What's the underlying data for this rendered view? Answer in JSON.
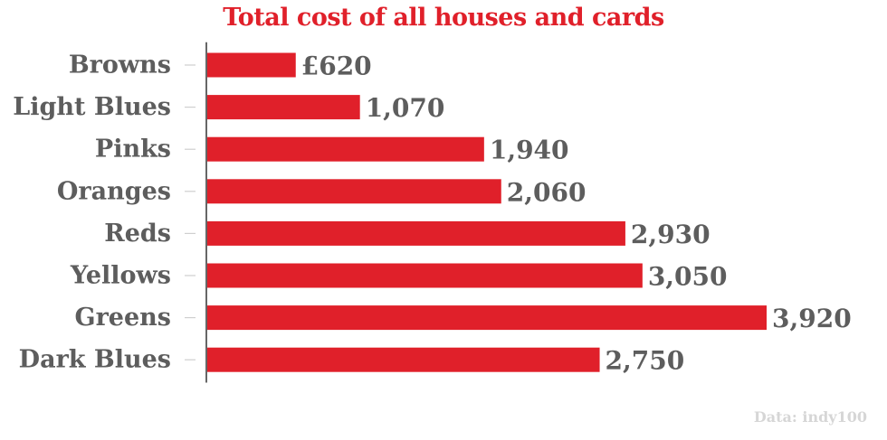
{
  "chart_data": {
    "type": "bar",
    "orientation": "horizontal",
    "title": "Total cost of all houses and cards",
    "categories": [
      "Browns",
      "Light Blues",
      "Pinks",
      "Oranges",
      "Reds",
      "Yellows",
      "Greens",
      "Dark Blues"
    ],
    "values": [
      620,
      1070,
      1940,
      2060,
      2930,
      3050,
      3920,
      2750
    ],
    "value_labels": [
      "£620",
      "1,070",
      "1,940",
      "2,060",
      "2,930",
      "3,050",
      "3,920",
      "2,750"
    ],
    "xlim": [
      0,
      3920
    ],
    "grid": false,
    "legend": "none",
    "bar_color": "#e0202a",
    "title_color": "#e0202a",
    "label_color": "#5d5d5d"
  },
  "source_note": "Data: indy100"
}
